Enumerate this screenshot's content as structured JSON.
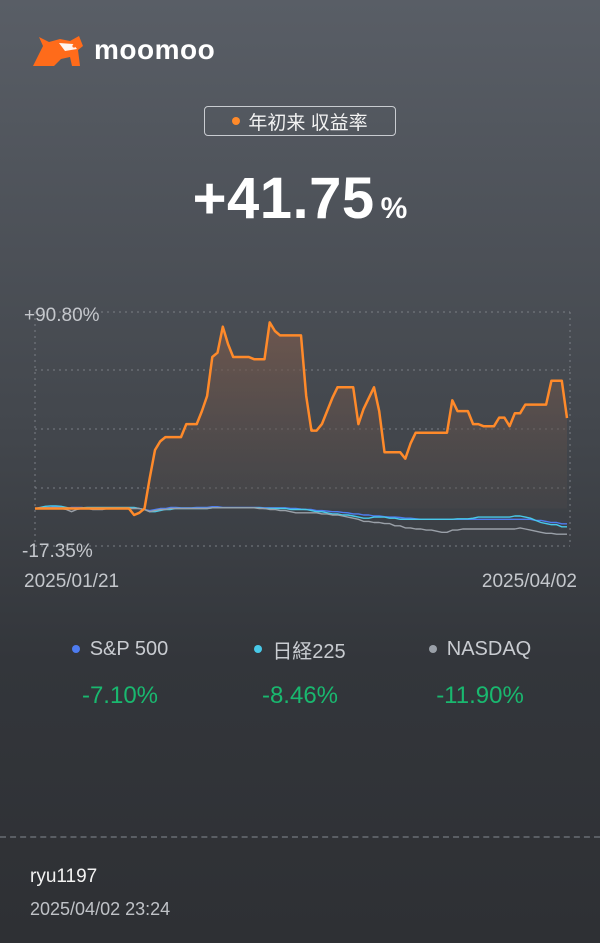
{
  "brand": {
    "name": "moomoo",
    "icon": "moomoo-bull-logo-icon",
    "color": "#ff6b1a"
  },
  "metric": {
    "label": "年初来 収益率",
    "dot_color": "#ff8a2a",
    "value": "+41.75",
    "unit": "%"
  },
  "chart_data": {
    "type": "line",
    "y_max_label": "+90.80%",
    "y_min_label": "-17.35%",
    "x_start_label": "2025/01/21",
    "x_end_label": "2025/04/02",
    "ylim": [
      -17.35,
      90.8
    ],
    "grid": true,
    "series": [
      {
        "name": "",
        "color": "#ff8a2a",
        "values": [
          0,
          0,
          0,
          0,
          0,
          0,
          0,
          0,
          0,
          0,
          0,
          0,
          0,
          0,
          0,
          0,
          0,
          0,
          0,
          -3.0,
          -2.0,
          0,
          14.0,
          27.0,
          31.0,
          33.0,
          33.0,
          33.0,
          33.0,
          39.0,
          39.0,
          39.0,
          45.0,
          52.0,
          70.0,
          72.0,
          84.0,
          76.0,
          70.0,
          70.0,
          70.0,
          70.0,
          69.0,
          69.0,
          69.0,
          86.0,
          82.0,
          80.0,
          80.0,
          80.0,
          80.0,
          80.0,
          52.0,
          36.0,
          36.0,
          39.0,
          45.0,
          51.0,
          56.0,
          56.0,
          56.0,
          56.0,
          39.0,
          46.0,
          51.0,
          56.0,
          45.0,
          26.0,
          26.0,
          26.0,
          26.0,
          23.0,
          30.0,
          35.0,
          35.0,
          35.0,
          35.0,
          35.0,
          35.0,
          35.0,
          50.0,
          45.0,
          45.0,
          45.0,
          39.0,
          39.0,
          38.0,
          38.0,
          38.0,
          42.0,
          42.0,
          38.0,
          44.0,
          44.0,
          48.0,
          48.0,
          48.0,
          48.0,
          48.0,
          59.0,
          59.0,
          59.0,
          41.75
        ]
      },
      {
        "name": "S&P 500",
        "color": "#4e7cf0",
        "values": [
          0,
          0.2,
          0.5,
          0.5,
          0.8,
          0.5,
          0,
          0.5,
          0.5,
          0.5,
          0,
          -0.2,
          -0.2,
          0,
          0,
          0,
          0.3,
          0.3,
          0.3,
          0.3,
          0,
          -0.5,
          -1.0,
          -0.5,
          0,
          0,
          0.5,
          0.5,
          0.3,
          0.3,
          0.3,
          0.5,
          0.5,
          0.5,
          0.8,
          0.8,
          0.5,
          0.5,
          0.5,
          0.5,
          0.5,
          0.5,
          0.5,
          0.5,
          0.3,
          0.3,
          0.3,
          0.3,
          0.3,
          0,
          0,
          -0.3,
          -0.5,
          -0.5,
          -1.0,
          -1.0,
          -1.2,
          -1.5,
          -1.5,
          -1.8,
          -2.0,
          -2.5,
          -2.5,
          -3.0,
          -3.0,
          -3.5,
          -3.5,
          -3.8,
          -4.0,
          -4.0,
          -4.2,
          -4.5,
          -4.5,
          -4.8,
          -5.0,
          -5.0,
          -5.0,
          -5.0,
          -5.0,
          -5.0,
          -5.0,
          -5.0,
          -5.0,
          -5.0,
          -5.0,
          -5.0,
          -5.0,
          -5.0,
          -5.0,
          -5.0,
          -5.0,
          -5.0,
          -5.0,
          -5.0,
          -5.0,
          -5.0,
          -5.5,
          -5.5,
          -6.0,
          -6.5,
          -6.5,
          -7.1,
          -7.1
        ]
      },
      {
        "name": "日経225",
        "color": "#48c9e8",
        "values": [
          0,
          0.5,
          1.0,
          1.2,
          1.2,
          1.0,
          0.5,
          0,
          0,
          0.3,
          0.5,
          0.5,
          0.5,
          0.5,
          0.5,
          0.5,
          0.5,
          0.5,
          0.5,
          0.5,
          0,
          -0.5,
          -1.5,
          -1.5,
          -1.0,
          -0.5,
          -0.5,
          0,
          0,
          0,
          0,
          0,
          0,
          0,
          0.3,
          0.3,
          0.3,
          0.3,
          0.3,
          0.3,
          0.3,
          0.3,
          0.3,
          0.3,
          0,
          0,
          0,
          0,
          0,
          -0.5,
          -0.5,
          -0.5,
          -0.5,
          -1.0,
          -1.5,
          -1.5,
          -2.0,
          -2.5,
          -2.5,
          -3.0,
          -3.0,
          -3.5,
          -4.0,
          -4.5,
          -4.5,
          -4.0,
          -4.0,
          -4.0,
          -4.5,
          -4.5,
          -5.0,
          -5.0,
          -5.0,
          -5.0,
          -5.0,
          -5.0,
          -5.0,
          -5.0,
          -5.0,
          -5.0,
          -5.0,
          -4.8,
          -4.8,
          -4.8,
          -4.5,
          -4.0,
          -4.0,
          -4.0,
          -4.0,
          -4.0,
          -4.0,
          -4.0,
          -3.5,
          -3.5,
          -4.0,
          -4.5,
          -5.5,
          -6.5,
          -7.0,
          -7.5,
          -7.5,
          -8.46,
          -8.46
        ]
      },
      {
        "name": "NASDAQ",
        "color": "#9aa0a8",
        "values": [
          0,
          0.2,
          0.2,
          0.2,
          0.2,
          0,
          -0.5,
          -1.5,
          -0.5,
          0,
          0,
          -0.5,
          -0.5,
          -0.5,
          0,
          0,
          0,
          0,
          0,
          0,
          0,
          -0.5,
          -1.5,
          -1.0,
          -0.5,
          -0.5,
          0,
          0,
          0,
          0,
          0,
          0,
          0,
          0,
          0.3,
          0.3,
          0.3,
          0.3,
          0.3,
          0.3,
          0.3,
          0.3,
          0.3,
          0,
          0,
          -0.5,
          -0.5,
          -1.0,
          -1.0,
          -1.5,
          -2.0,
          -2.0,
          -2.0,
          -2.0,
          -2.0,
          -2.5,
          -2.5,
          -3.0,
          -3.0,
          -3.5,
          -4.0,
          -4.5,
          -5.0,
          -6.0,
          -6.0,
          -6.5,
          -6.5,
          -7.0,
          -7.0,
          -8.0,
          -8.0,
          -9.0,
          -9.0,
          -9.5,
          -9.5,
          -10.0,
          -10.0,
          -10.5,
          -11.0,
          -11.0,
          -10.0,
          -10.0,
          -9.5,
          -9.5,
          -9.5,
          -9.5,
          -9.5,
          -9.5,
          -9.5,
          -9.5,
          -9.5,
          -9.5,
          -9.5,
          -9.0,
          -9.5,
          -10.0,
          -10.5,
          -11.0,
          -11.5,
          -11.5,
          -11.9,
          -11.9,
          -11.9
        ]
      }
    ]
  },
  "legend": [
    {
      "name": "S&P 500",
      "color": "#4e7cf0",
      "value": "-7.10%"
    },
    {
      "name": "日経225",
      "color": "#48c9e8",
      "value": "-8.46%"
    },
    {
      "name": "NASDAQ",
      "color": "#9aa0a8",
      "value": "-11.90%"
    }
  ],
  "footer": {
    "username": "ryu1197",
    "timestamp": "2025/04/02 23:24"
  }
}
